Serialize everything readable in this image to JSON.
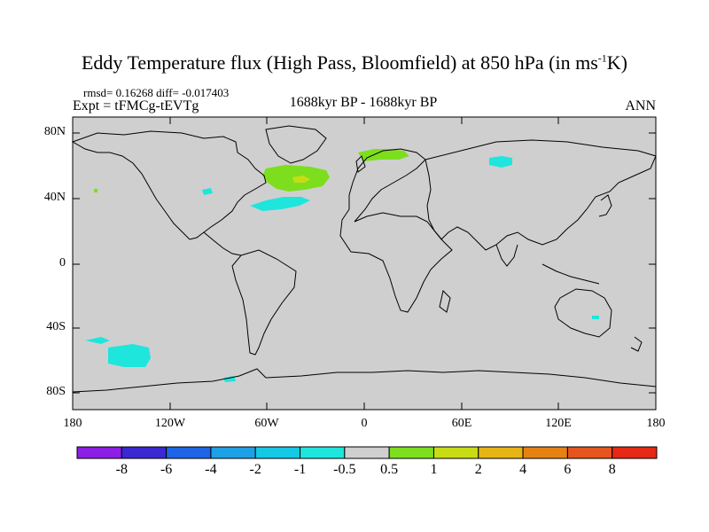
{
  "title": {
    "main": "Eddy Temperature flux (High Pass, Bloomfield) at 850 hPa (in ms",
    "exp": "-1",
    "tail": "K)"
  },
  "stats_line": "rmsd= 0.16268 diff= -0.017403",
  "expt_line": "Expt = tFMCg-tEVTg",
  "period": "1688kyr BP - 1688kyr BP",
  "season": "ANN",
  "map": {
    "lat_range": [
      -90,
      90
    ],
    "lon_range": [
      -180,
      180
    ],
    "lat_ticks": [
      "80N",
      "40N",
      "0",
      "40S",
      "80S"
    ],
    "lon_ticks": [
      "180",
      "120W",
      "60W",
      "0",
      "60E",
      "120E",
      "180"
    ],
    "ocean_color": "#cfcfcf",
    "coast_color": "#000000"
  },
  "colorbar": {
    "colors": [
      "#8c1ee6",
      "#3c28d2",
      "#1e64e6",
      "#1ea0e6",
      "#14c8e6",
      "#1ee6dc",
      "#cfcfcf",
      "#7dde1e",
      "#c8dc14",
      "#e6b414",
      "#e68214",
      "#e6551e",
      "#e62814"
    ],
    "labels": [
      "-8",
      "-6",
      "-4",
      "-2",
      "-1",
      "-0.5",
      "0.5",
      "1",
      "2",
      "4",
      "6",
      "8"
    ]
  }
}
